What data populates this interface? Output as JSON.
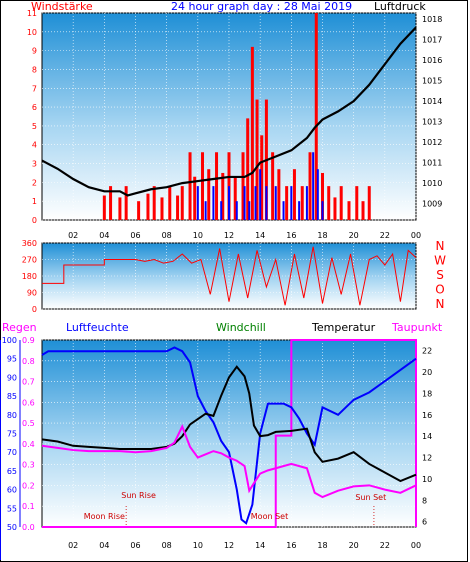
{
  "title": "24 hour graph day : 28 Mai 2019",
  "colors": {
    "red": "#ff0000",
    "blue": "#0000ff",
    "black": "#000000",
    "magenta": "#ff00ff",
    "green": "#008000",
    "darkred": "#cc0000",
    "gradient_top": "#1f8fd6",
    "gradient_bottom": "#ffffff"
  },
  "chart_data": [
    {
      "name": "wind-pressure",
      "type": "bar",
      "left_label": "Windstärke",
      "right_label": "Luftdruck",
      "x_ticks": [
        "02",
        "04",
        "06",
        "08",
        "10",
        "12",
        "14",
        "16",
        "18",
        "20",
        "22",
        "00"
      ],
      "y_left_ticks": [
        "11",
        "10",
        "9",
        "8",
        "7",
        "6",
        "5",
        "4",
        "3",
        "2",
        "1",
        "0"
      ],
      "y_right_ticks": [
        "1018",
        "1017",
        "1016",
        "1015",
        "1014",
        "1013",
        "1012",
        "1011",
        "1010",
        "1009"
      ],
      "wind_ylim": [
        0,
        11
      ],
      "pressure_ylim": [
        1008.2,
        1018.3
      ],
      "pressure_x": [
        0,
        1,
        2,
        3,
        4,
        4.5,
        5,
        5.5,
        6,
        7,
        8,
        9,
        10,
        11,
        12,
        12.5,
        13,
        13.5,
        14,
        15,
        16,
        17,
        17.5,
        18,
        19,
        20,
        21,
        22,
        23,
        24
      ],
      "pressure_y": [
        1011.1,
        1010.7,
        1010.2,
        1009.8,
        1009.6,
        1009.6,
        1009.6,
        1009.4,
        1009.5,
        1009.7,
        1009.8,
        1010.0,
        1010.1,
        1010.2,
        1010.3,
        1010.3,
        1010.3,
        1010.5,
        1011.0,
        1011.3,
        1011.6,
        1012.2,
        1012.7,
        1013.1,
        1013.5,
        1014.0,
        1014.8,
        1015.8,
        1016.8,
        1017.6
      ],
      "wind_gust_bars": [
        {
          "x": 4.0,
          "v": 1.3
        },
        {
          "x": 4.4,
          "v": 1.8
        },
        {
          "x": 5.0,
          "v": 1.2
        },
        {
          "x": 5.4,
          "v": 1.8
        },
        {
          "x": 6.2,
          "v": 1.0
        },
        {
          "x": 6.8,
          "v": 1.4
        },
        {
          "x": 7.2,
          "v": 1.8
        },
        {
          "x": 7.7,
          "v": 1.2
        },
        {
          "x": 8.2,
          "v": 1.8
        },
        {
          "x": 8.7,
          "v": 1.3
        },
        {
          "x": 9.0,
          "v": 1.8
        },
        {
          "x": 9.5,
          "v": 3.6
        },
        {
          "x": 9.8,
          "v": 2.3
        },
        {
          "x": 10.3,
          "v": 3.6
        },
        {
          "x": 10.7,
          "v": 2.7
        },
        {
          "x": 11.2,
          "v": 3.6
        },
        {
          "x": 11.6,
          "v": 2.5
        },
        {
          "x": 12.0,
          "v": 3.6
        },
        {
          "x": 12.4,
          "v": 2.3
        },
        {
          "x": 12.9,
          "v": 3.6
        },
        {
          "x": 13.2,
          "v": 5.4
        },
        {
          "x": 13.5,
          "v": 9.2
        },
        {
          "x": 13.8,
          "v": 6.4
        },
        {
          "x": 14.1,
          "v": 4.5
        },
        {
          "x": 14.4,
          "v": 6.4
        },
        {
          "x": 14.8,
          "v": 3.6
        },
        {
          "x": 15.2,
          "v": 2.7
        },
        {
          "x": 15.7,
          "v": 1.8
        },
        {
          "x": 16.2,
          "v": 2.7
        },
        {
          "x": 16.7,
          "v": 1.8
        },
        {
          "x": 17.2,
          "v": 3.6
        },
        {
          "x": 17.6,
          "v": 11.0
        },
        {
          "x": 18.0,
          "v": 2.5
        },
        {
          "x": 18.4,
          "v": 1.8
        },
        {
          "x": 18.8,
          "v": 1.2
        },
        {
          "x": 19.2,
          "v": 1.8
        },
        {
          "x": 19.7,
          "v": 1.0
        },
        {
          "x": 20.2,
          "v": 1.8
        },
        {
          "x": 20.6,
          "v": 1.0
        },
        {
          "x": 21.0,
          "v": 1.8
        }
      ],
      "wind_mean_bars": [
        {
          "x": 10.0,
          "v": 1.8
        },
        {
          "x": 10.5,
          "v": 1.0
        },
        {
          "x": 11.0,
          "v": 1.8
        },
        {
          "x": 11.5,
          "v": 1.0
        },
        {
          "x": 12.0,
          "v": 1.8
        },
        {
          "x": 12.5,
          "v": 1.0
        },
        {
          "x": 13.0,
          "v": 1.8
        },
        {
          "x": 13.3,
          "v": 1.0
        },
        {
          "x": 13.7,
          "v": 1.8
        },
        {
          "x": 14.0,
          "v": 2.7
        },
        {
          "x": 14.4,
          "v": 1.8
        },
        {
          "x": 15.0,
          "v": 1.8
        },
        {
          "x": 15.5,
          "v": 1.0
        },
        {
          "x": 16.0,
          "v": 1.8
        },
        {
          "x": 16.5,
          "v": 1.0
        },
        {
          "x": 17.0,
          "v": 1.8
        },
        {
          "x": 17.4,
          "v": 3.6
        },
        {
          "x": 17.7,
          "v": 2.7
        },
        {
          "x": 18.0,
          "v": 1.0
        }
      ]
    },
    {
      "name": "wind-direction",
      "type": "line",
      "right_label_letters": [
        "N",
        "W",
        "S",
        "O",
        "N"
      ],
      "y_ticks": [
        "360",
        "270",
        "180",
        "90",
        "0"
      ],
      "ylim": [
        0,
        360
      ],
      "x": [
        0,
        1,
        1.4,
        1.4,
        4.0,
        4.0,
        6.0,
        6.6,
        7.2,
        7.8,
        8.4,
        9.0,
        9.6,
        10.2,
        10.8,
        11.4,
        12.0,
        12.6,
        13.2,
        13.8,
        14.4,
        15.0,
        15.6,
        16.2,
        16.8,
        17.4,
        18.0,
        18.6,
        19.2,
        19.8,
        20.4,
        21.0,
        21.5,
        22.0,
        22.5,
        23.0,
        23.5,
        24
      ],
      "y": [
        140,
        140,
        140,
        240,
        240,
        270,
        270,
        260,
        270,
        250,
        260,
        300,
        250,
        270,
        80,
        330,
        40,
        300,
        60,
        320,
        120,
        270,
        20,
        300,
        60,
        340,
        30,
        280,
        80,
        300,
        20,
        270,
        290,
        240,
        300,
        40,
        320,
        280
      ]
    },
    {
      "name": "humidity-temperature",
      "type": "line",
      "labels": {
        "regen": "Regen",
        "luftfeuchte": "Luftfeuchte",
        "windchill": "Windchill",
        "temperatur": "Temperatur",
        "taupunkt": "Taupunkt"
      },
      "y_regen_ticks": [
        "0.9",
        "0.8",
        "0.7",
        "0.6",
        "0.5",
        "0.4",
        "0.3",
        "0.2",
        "0.1",
        "0.0"
      ],
      "y_humidity_ticks": [
        "100",
        "95",
        "90",
        "85",
        "80",
        "75",
        "70",
        "65",
        "60",
        "55",
        "50"
      ],
      "y_temp_ticks": [
        "22",
        "20",
        "18",
        "16",
        "14",
        "12",
        "10",
        "8",
        "6"
      ],
      "temp_ylim": [
        5.5,
        23.0
      ],
      "humidity_ylim": [
        50,
        100
      ],
      "temperature_x": [
        0,
        1,
        2,
        3,
        4,
        5,
        6,
        7,
        8,
        8.5,
        9,
        9.5,
        10,
        10.5,
        11,
        11.5,
        12,
        12.5,
        13,
        13.3,
        13.6,
        14,
        14.5,
        15,
        16,
        17,
        17.5,
        18,
        19,
        20,
        21,
        22,
        23,
        24
      ],
      "temperature_y": [
        13.7,
        13.5,
        13.1,
        13.0,
        12.9,
        12.8,
        12.8,
        12.8,
        13.0,
        13.3,
        14.0,
        15.1,
        15.6,
        16.1,
        15.9,
        17.8,
        19.5,
        20.5,
        19.6,
        18.0,
        15.0,
        14.0,
        14.1,
        14.4,
        14.5,
        14.7,
        12.5,
        11.6,
        11.9,
        12.5,
        11.4,
        10.6,
        9.8,
        10.4
      ],
      "dewpoint_x": [
        0,
        1,
        2,
        3,
        4,
        5,
        6,
        7,
        8,
        8.5,
        9,
        9.5,
        10,
        10.5,
        11,
        11.5,
        12,
        12.5,
        13,
        13.3,
        13.6,
        14,
        14.5,
        15,
        16,
        17,
        17.5,
        18,
        19,
        20,
        21,
        22,
        23,
        24
      ],
      "dewpoint_y": [
        13.1,
        12.9,
        12.7,
        12.6,
        12.6,
        12.6,
        12.5,
        12.6,
        12.9,
        13.4,
        14.9,
        13.0,
        12.0,
        12.3,
        12.6,
        12.4,
        12.0,
        11.7,
        11.2,
        8.9,
        9.6,
        10.5,
        10.8,
        11.0,
        11.4,
        11.0,
        8.7,
        8.3,
        8.9,
        9.3,
        9.4,
        9.0,
        8.7,
        9.4
      ],
      "humidity_x": [
        0,
        0.4,
        1,
        2,
        3,
        4,
        5,
        6,
        7,
        8,
        8.5,
        9,
        9.5,
        10,
        10.5,
        11,
        11.5,
        12,
        12.5,
        12.8,
        13.1,
        13.5,
        14,
        14.5,
        15,
        15.5,
        16,
        16.5,
        17,
        17.5,
        18,
        19,
        20,
        21,
        22,
        23,
        24
      ],
      "humidity_y": [
        96,
        97,
        97,
        97,
        97,
        97,
        97,
        97,
        97,
        97,
        98,
        97,
        94,
        85,
        81,
        78,
        73,
        70,
        60,
        52,
        51,
        56,
        75,
        83,
        83,
        83,
        82,
        79,
        75,
        72,
        82,
        80,
        84,
        86,
        89,
        92,
        95
      ],
      "rain_area": {
        "x_start": 15.0,
        "x_end": 24,
        "step_x": 16.0,
        "level_low": 0.44,
        "level_high": 0.9
      },
      "annotations": {
        "moon_rise": "Moon Rise",
        "sun_rise": "Sun Rise",
        "moon_set": "Moon Set",
        "sun_set": "Sun Set"
      },
      "annotation_hours": {
        "moon_rise": 5.2,
        "sun_rise": 5.4,
        "moon_set": 14.6,
        "sun_set": 21.3
      },
      "x_ticks": [
        "02",
        "04",
        "06",
        "08",
        "10",
        "12",
        "14",
        "16",
        "18",
        "20",
        "22",
        "00"
      ]
    }
  ]
}
